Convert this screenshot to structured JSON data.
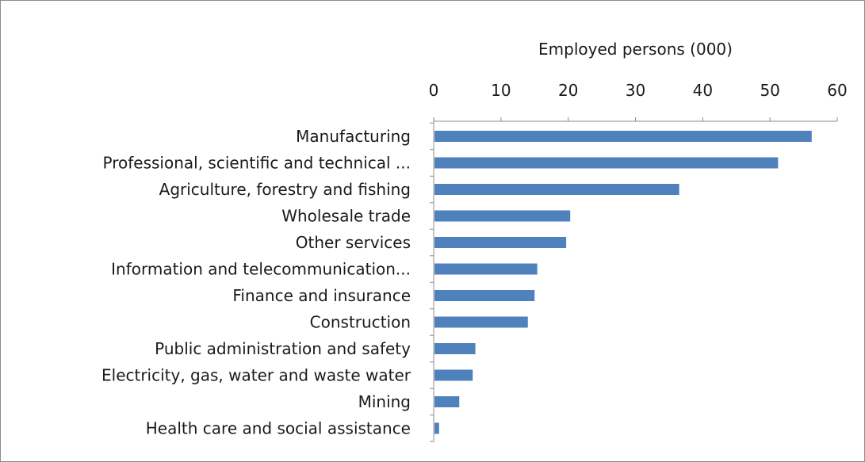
{
  "chart_data": {
    "type": "bar",
    "orientation": "horizontal",
    "title": "",
    "xlabel": "Employed persons (000)",
    "ylabel": "",
    "xlim": [
      0,
      60
    ],
    "x_ticks": [
      0,
      10,
      20,
      30,
      40,
      50,
      60
    ],
    "x_axis_position": "top",
    "grid": false,
    "legend": "none",
    "bar_color": "#4f81bd",
    "categories": [
      "Manufacturing",
      "Professional, scientific and technical ...",
      "Agriculture, forestry and fishing",
      "Wholesale trade",
      "Other services",
      "Information and telecommunication...",
      "Finance and insurance",
      "Construction",
      "Public administration and safety",
      "Electricity, gas, water and waste water",
      "Mining",
      "Health care and social assistance"
    ],
    "values": [
      56.2,
      51.2,
      36.5,
      20.3,
      19.7,
      15.4,
      15.0,
      14.0,
      6.2,
      5.8,
      3.8,
      0.8
    ]
  }
}
